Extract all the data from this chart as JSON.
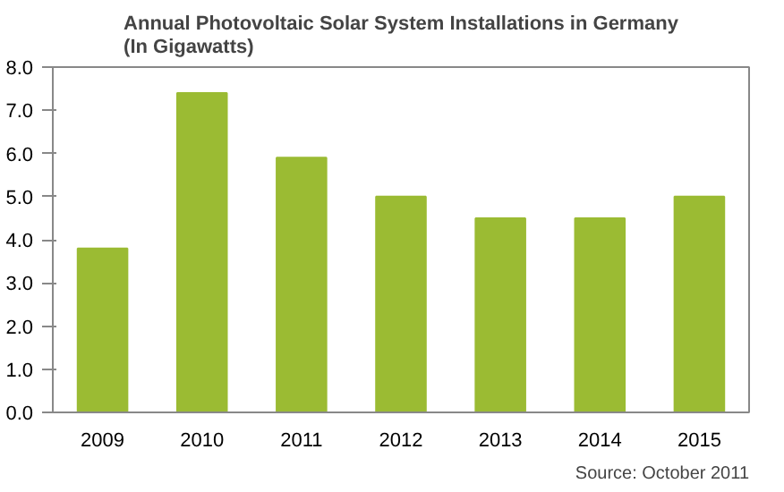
{
  "chart_data": {
    "type": "bar",
    "title": "Annual Photovoltaic Solar System Installations in Germany\n(In Gigawatts)",
    "categories": [
      "2009",
      "2010",
      "2011",
      "2012",
      "2013",
      "2014",
      "2015"
    ],
    "values": [
      3.8,
      7.4,
      5.9,
      5.0,
      4.5,
      4.5,
      5.0
    ],
    "color": "#9bbb33",
    "ylim": [
      0,
      8
    ],
    "yticks": [
      {
        "value": 0,
        "label": "0.0"
      },
      {
        "value": 1,
        "label": "1.0"
      },
      {
        "value": 2,
        "label": "2.0"
      },
      {
        "value": 3,
        "label": "3.0"
      },
      {
        "value": 4,
        "label": "4.0"
      },
      {
        "value": 5,
        "label": "5.0"
      },
      {
        "value": 6,
        "label": "6.0"
      },
      {
        "value": 7,
        "label": "7.0"
      },
      {
        "value": 8,
        "label": "8.0"
      }
    ],
    "grid": false,
    "annotations": [
      "Source: October 2011"
    ]
  }
}
